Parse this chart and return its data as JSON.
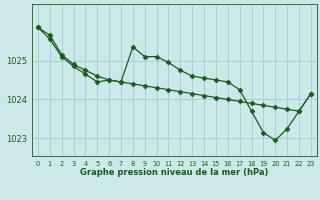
{
  "title": "Graphe pression niveau de la mer (hPa)",
  "background_color": "#cce8e8",
  "grid_color": "#aacfcf",
  "line_color": "#1a5c1a",
  "xlim": [
    -0.5,
    23.5
  ],
  "ylim": [
    1022.55,
    1026.45
  ],
  "yticks": [
    1023,
    1024,
    1025
  ],
  "xticks": [
    0,
    1,
    2,
    3,
    4,
    5,
    6,
    7,
    8,
    9,
    10,
    11,
    12,
    13,
    14,
    15,
    16,
    17,
    18,
    19,
    20,
    21,
    22,
    23
  ],
  "series1_x": [
    0,
    1,
    2,
    3,
    4,
    5,
    6,
    7,
    8,
    9,
    10,
    11,
    12,
    13,
    14,
    15,
    16,
    17,
    18,
    19,
    20,
    21,
    22,
    23
  ],
  "series1_y": [
    1025.85,
    1025.65,
    1025.15,
    1024.9,
    1024.75,
    1024.6,
    1024.5,
    1024.45,
    1024.4,
    1024.35,
    1024.3,
    1024.25,
    1024.2,
    1024.15,
    1024.1,
    1024.05,
    1024.0,
    1023.95,
    1023.9,
    1023.85,
    1023.8,
    1023.75,
    1023.7,
    1024.15
  ],
  "series2_x": [
    0,
    1,
    2,
    3,
    4,
    5,
    6,
    7,
    8,
    9,
    10,
    11,
    12,
    13,
    14,
    15,
    16,
    17,
    18,
    19,
    20,
    21,
    22,
    23
  ],
  "series2_y": [
    1025.85,
    1025.55,
    1025.1,
    1024.85,
    1024.65,
    1024.45,
    1024.5,
    1024.45,
    1025.35,
    1025.1,
    1025.1,
    1024.95,
    1024.75,
    1024.6,
    1024.55,
    1024.5,
    1024.45,
    1024.25,
    1023.7,
    1023.15,
    1022.95,
    1023.25,
    1023.7,
    1024.15
  ],
  "marker": "D",
  "markersize": 2.5,
  "linewidth": 0.9,
  "xlabel_fontsize": 6.0,
  "ytick_fontsize": 6.0,
  "xtick_fontsize": 4.8
}
